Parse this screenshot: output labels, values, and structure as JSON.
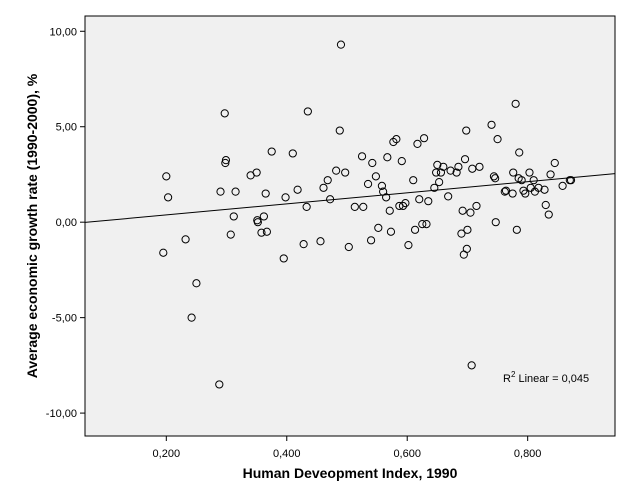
{
  "chart_data": {
    "type": "scatter",
    "xlabel": "Human Deveopment Index, 1990",
    "ylabel": "Average economic growth rate (1990-2000), %",
    "xlim": [
      0.065,
      0.945
    ],
    "ylim": [
      -11.2,
      10.8
    ],
    "x_ticks": [
      0.2,
      0.4,
      0.6,
      0.8
    ],
    "x_tick_labels": [
      "0,200",
      "0,400",
      "0,600",
      "0,800"
    ],
    "y_ticks": [
      -10,
      -5,
      0,
      5,
      10
    ],
    "y_tick_labels": [
      "-10,00",
      "-5,00",
      "0,00",
      "5,00",
      "10,00"
    ],
    "grid": false,
    "plot_background": "#f0f0f0",
    "point_color": "#000000",
    "fit_line": {
      "label_prefix": "R",
      "label_sup": "2",
      "label_suffix": " Linear = 0,045",
      "intercept": -0.2,
      "slope": 2.9
    },
    "points": [
      [
        0.195,
        -1.6
      ],
      [
        0.2,
        2.4
      ],
      [
        0.203,
        1.3
      ],
      [
        0.232,
        -0.9
      ],
      [
        0.242,
        -5.0
      ],
      [
        0.25,
        -3.2
      ],
      [
        0.288,
        -8.5
      ],
      [
        0.29,
        1.6
      ],
      [
        0.297,
        5.7
      ],
      [
        0.298,
        3.1
      ],
      [
        0.299,
        3.25
      ],
      [
        0.307,
        -0.65
      ],
      [
        0.312,
        0.3
      ],
      [
        0.315,
        1.6
      ],
      [
        0.34,
        2.45
      ],
      [
        0.35,
        2.6
      ],
      [
        0.351,
        0.1
      ],
      [
        0.352,
        0.0
      ],
      [
        0.358,
        -0.55
      ],
      [
        0.362,
        0.3
      ],
      [
        0.365,
        1.5
      ],
      [
        0.367,
        -0.5
      ],
      [
        0.375,
        3.7
      ],
      [
        0.395,
        -1.9
      ],
      [
        0.398,
        1.3
      ],
      [
        0.41,
        3.6
      ],
      [
        0.418,
        1.7
      ],
      [
        0.428,
        -1.15
      ],
      [
        0.433,
        0.8
      ],
      [
        0.435,
        5.8
      ],
      [
        0.456,
        -1.0
      ],
      [
        0.461,
        1.8
      ],
      [
        0.468,
        2.2
      ],
      [
        0.472,
        1.2
      ],
      [
        0.482,
        2.7
      ],
      [
        0.488,
        4.8
      ],
      [
        0.49,
        9.3
      ],
      [
        0.497,
        2.6
      ],
      [
        0.503,
        -1.3
      ],
      [
        0.513,
        0.8
      ],
      [
        0.525,
        3.45
      ],
      [
        0.527,
        0.8
      ],
      [
        0.535,
        2.0
      ],
      [
        0.54,
        -0.95
      ],
      [
        0.542,
        3.1
      ],
      [
        0.548,
        2.4
      ],
      [
        0.552,
        -0.3
      ],
      [
        0.558,
        1.9
      ],
      [
        0.56,
        1.6
      ],
      [
        0.565,
        1.3
      ],
      [
        0.567,
        3.4
      ],
      [
        0.571,
        0.6
      ],
      [
        0.573,
        -0.5
      ],
      [
        0.577,
        4.2
      ],
      [
        0.582,
        4.35
      ],
      [
        0.587,
        0.85
      ],
      [
        0.591,
        3.2
      ],
      [
        0.593,
        0.85
      ],
      [
        0.597,
        1.0
      ],
      [
        0.602,
        -1.2
      ],
      [
        0.61,
        2.2
      ],
      [
        0.613,
        -0.4
      ],
      [
        0.617,
        4.1
      ],
      [
        0.62,
        1.2
      ],
      [
        0.625,
        -0.1
      ],
      [
        0.628,
        4.4
      ],
      [
        0.632,
        -0.1
      ],
      [
        0.635,
        1.1
      ],
      [
        0.645,
        1.8
      ],
      [
        0.648,
        2.6
      ],
      [
        0.65,
        3.0
      ],
      [
        0.653,
        2.1
      ],
      [
        0.656,
        2.6
      ],
      [
        0.66,
        2.9
      ],
      [
        0.668,
        1.35
      ],
      [
        0.672,
        2.7
      ],
      [
        0.682,
        2.6
      ],
      [
        0.685,
        2.9
      ],
      [
        0.69,
        -0.6
      ],
      [
        0.692,
        0.6
      ],
      [
        0.694,
        -1.7
      ],
      [
        0.696,
        3.3
      ],
      [
        0.698,
        4.8
      ],
      [
        0.699,
        -1.4
      ],
      [
        0.7,
        -0.4
      ],
      [
        0.705,
        0.5
      ],
      [
        0.707,
        -7.5
      ],
      [
        0.708,
        2.8
      ],
      [
        0.715,
        0.85
      ],
      [
        0.72,
        2.9
      ],
      [
        0.74,
        5.1
      ],
      [
        0.744,
        2.4
      ],
      [
        0.746,
        2.3
      ],
      [
        0.747,
        0.0
      ],
      [
        0.75,
        4.35
      ],
      [
        0.762,
        1.6
      ],
      [
        0.764,
        1.65
      ],
      [
        0.775,
        1.5
      ],
      [
        0.776,
        2.6
      ],
      [
        0.78,
        6.2
      ],
      [
        0.782,
        -0.4
      ],
      [
        0.785,
        2.3
      ],
      [
        0.786,
        3.65
      ],
      [
        0.79,
        2.2
      ],
      [
        0.793,
        1.65
      ],
      [
        0.796,
        1.5
      ],
      [
        0.803,
        2.6
      ],
      [
        0.805,
        1.8
      ],
      [
        0.81,
        2.2
      ],
      [
        0.812,
        1.6
      ],
      [
        0.818,
        1.8
      ],
      [
        0.828,
        1.7
      ],
      [
        0.83,
        0.9
      ],
      [
        0.835,
        0.4
      ],
      [
        0.838,
        2.5
      ],
      [
        0.845,
        3.1
      ],
      [
        0.858,
        1.9
      ],
      [
        0.87,
        2.2
      ],
      [
        0.872,
        2.2
      ]
    ]
  }
}
